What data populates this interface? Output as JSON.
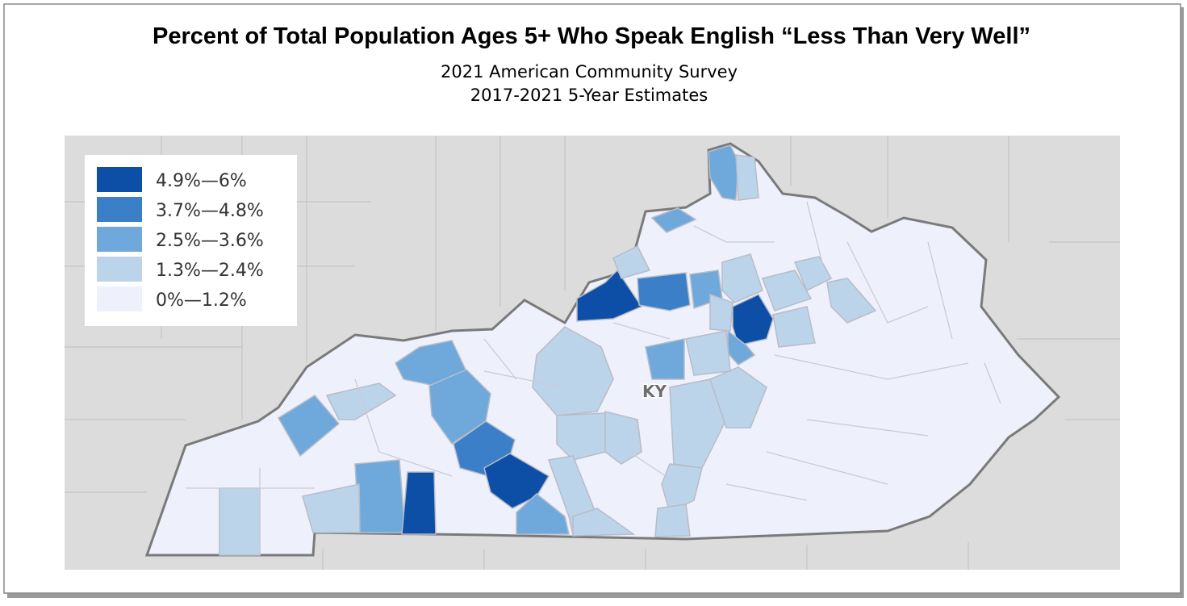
{
  "title": "Percent of Total Population Ages 5+ Who Speak English “Less Than Very Well”",
  "subtitle": [
    "2021 American Community Survey",
    "2017-2021 5-Year Estimates"
  ],
  "legend": {
    "items": [
      {
        "label": "4.9%—6%",
        "color": "#0d4ea6"
      },
      {
        "label": "3.7%—4.8%",
        "color": "#3a7fc8"
      },
      {
        "label": "2.5%—3.6%",
        "color": "#6fa9dc"
      },
      {
        "label": "1.3%—2.4%",
        "color": "#bcd4ea"
      },
      {
        "label": "0%—1.2%",
        "color": "#eef0fb"
      }
    ]
  },
  "map_label": "KY"
}
